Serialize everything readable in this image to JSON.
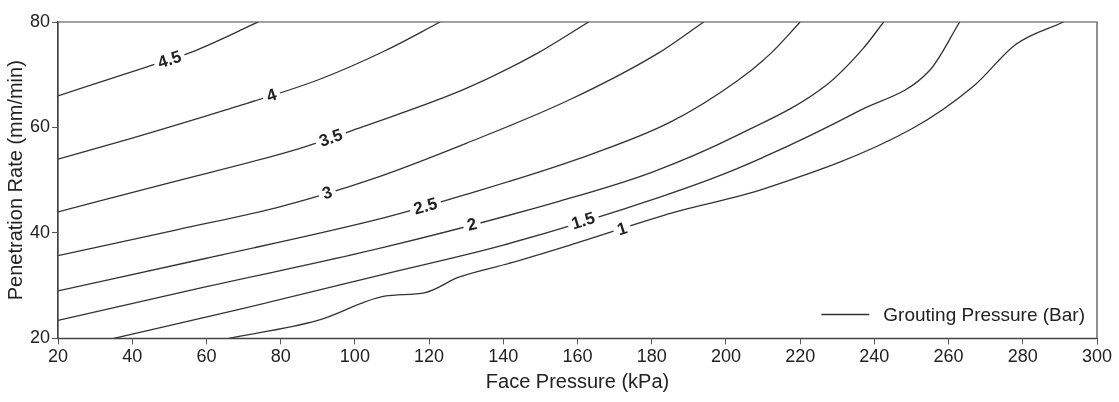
{
  "chart_data": {
    "type": "line",
    "xlabel": "Face Pressure (kPa)",
    "ylabel": "Penetration Rate (mm/min)",
    "legend_title": "Grouting Pressure (Bar)",
    "xlim": [
      20,
      300
    ],
    "xticks": [
      20,
      40,
      60,
      80,
      100,
      120,
      140,
      160,
      180,
      200,
      220,
      240,
      260,
      280,
      300
    ],
    "ylim": [
      20,
      80
    ],
    "yticks": [
      20,
      40,
      60,
      80
    ],
    "grid": false,
    "marker": "none",
    "line_style": "solid",
    "series": [
      {
        "name": "4.5",
        "color": "#333333",
        "x": [
          20,
          44,
          56,
          74
        ],
        "values": [
          66,
          71.5,
          74.3,
          80
        ]
      },
      {
        "name": "4",
        "color": "#333333",
        "x": [
          20,
          40,
          65,
          90,
          108,
          123
        ],
        "values": [
          54,
          58,
          63.3,
          69,
          74.5,
          80
        ]
      },
      {
        "name": "3.5",
        "color": "#333333",
        "x": [
          20,
          50,
          85,
          102,
          130,
          149,
          163
        ],
        "values": [
          44,
          49.5,
          56,
          60.1,
          67.4,
          74,
          80
        ]
      },
      {
        "name": "3",
        "color": "#333333",
        "x": [
          20,
          52,
          80,
          105,
          130,
          158,
          182,
          194
        ],
        "values": [
          35.7,
          40.6,
          45,
          50.3,
          57,
          65.3,
          74.2,
          80
        ]
      },
      {
        "name": "2.5",
        "color": "#333333",
        "x": [
          20,
          60,
          108,
          130,
          160,
          185,
          203,
          212,
          220
        ],
        "values": [
          29,
          35.2,
          42.9,
          47.3,
          54,
          61,
          68.8,
          74,
          80
        ]
      },
      {
        "name": "2",
        "color": "#333333",
        "x": [
          20,
          60,
          108,
          155,
          180,
          203,
          227,
          237,
          242.5
        ],
        "values": [
          23.4,
          29.8,
          37.3,
          46,
          51.5,
          58.5,
          68,
          75,
          80
        ]
      },
      {
        "name": "1.5",
        "color": "#333333",
        "x": [
          35,
          70,
          108,
          140,
          183,
          203,
          236,
          255,
          263
        ],
        "values": [
          20,
          25.7,
          32.2,
          37.7,
          47,
          52.2,
          63.2,
          70.9,
          80
        ]
      },
      {
        "name": "1",
        "color": "#333333",
        "x": [
          66,
          90,
          108,
          119,
          128,
          142,
          158,
          186,
          210,
          250,
          267,
          278,
          291
        ],
        "values": [
          20,
          23.4,
          28,
          28.7,
          31.6,
          34.3,
          37.7,
          43.9,
          48.3,
          59.7,
          68,
          75.7,
          80
        ]
      }
    ]
  }
}
